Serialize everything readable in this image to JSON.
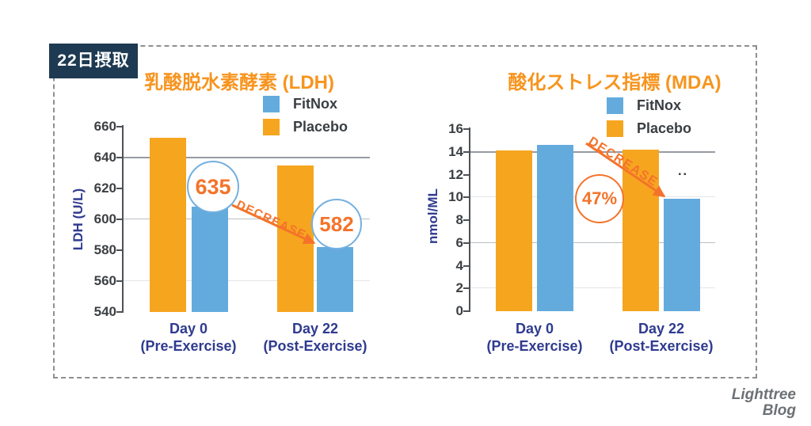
{
  "banner": {
    "label": "22日摂取"
  },
  "logo": {
    "line1": "Lighttree",
    "line2": "Blog"
  },
  "colors": {
    "banner_bg": "#1E3A52",
    "title_orange": "#F7941E",
    "annotation_orange": "#F4732A",
    "navy_text": "#2F3B8F",
    "fitnox_blue": "#64ABDD",
    "placebo_orange": "#F6A51F"
  },
  "chart_data": [
    {
      "type": "bar",
      "title": "乳酸脱水素酵素 (LDH)",
      "ylabel": "LDH (U/L)",
      "ylim": [
        540,
        660
      ],
      "yticks": [
        660,
        640,
        620,
        600,
        580,
        560,
        540
      ],
      "gridlines": [
        {
          "value": 640,
          "weight": "strong"
        },
        {
          "value": 600,
          "weight": "medium"
        },
        {
          "value": 560,
          "weight": "faint"
        }
      ],
      "categories": [
        {
          "line1": "Day 0",
          "line2": "(Pre-Exercise)"
        },
        {
          "line1": "Day 22",
          "line2": "(Post-Exercise)"
        }
      ],
      "legend": [
        {
          "label": "FitNox",
          "color": "#64ABDD"
        },
        {
          "label": "Placebo",
          "color": "#F6A51F"
        }
      ],
      "series": [
        {
          "name": "Placebo",
          "color": "#F6A51F",
          "values": [
            653,
            635
          ]
        },
        {
          "name": "FitNox",
          "color": "#64ABDD",
          "values": [
            608,
            582
          ]
        }
      ],
      "annotations": {
        "circles": [
          {
            "text": "635"
          },
          {
            "text": "582"
          }
        ],
        "arrow_label": "DECREASE"
      }
    },
    {
      "type": "bar",
      "title": "酸化ストレス指標 (MDA)",
      "ylabel": "nmol/ML",
      "ylim": [
        0,
        16
      ],
      "yticks": [
        16,
        14,
        12,
        10,
        8,
        6,
        4,
        2,
        0
      ],
      "gridlines": [
        {
          "value": 14,
          "weight": "strong"
        },
        {
          "value": 10,
          "weight": "faint"
        },
        {
          "value": 6,
          "weight": "medium"
        },
        {
          "value": 2,
          "weight": "faint"
        }
      ],
      "categories": [
        {
          "line1": "Day 0",
          "line2": "(Pre-Exercise)"
        },
        {
          "line1": "Day 22",
          "line2": "(Post-Exercise)"
        }
      ],
      "legend": [
        {
          "label": "FitNox",
          "color": "#64ABDD"
        },
        {
          "label": "Placebo",
          "color": "#F6A51F"
        }
      ],
      "series": [
        {
          "name": "Placebo",
          "color": "#F6A51F",
          "values": [
            14.1,
            14.2
          ]
        },
        {
          "name": "FitNox",
          "color": "#64ABDD",
          "values": [
            14.6,
            9.9
          ]
        }
      ],
      "annotations": {
        "circles": [
          {
            "text": "47%"
          }
        ],
        "arrow_label": "DECREASE",
        "significance": "▪▪"
      }
    }
  ]
}
